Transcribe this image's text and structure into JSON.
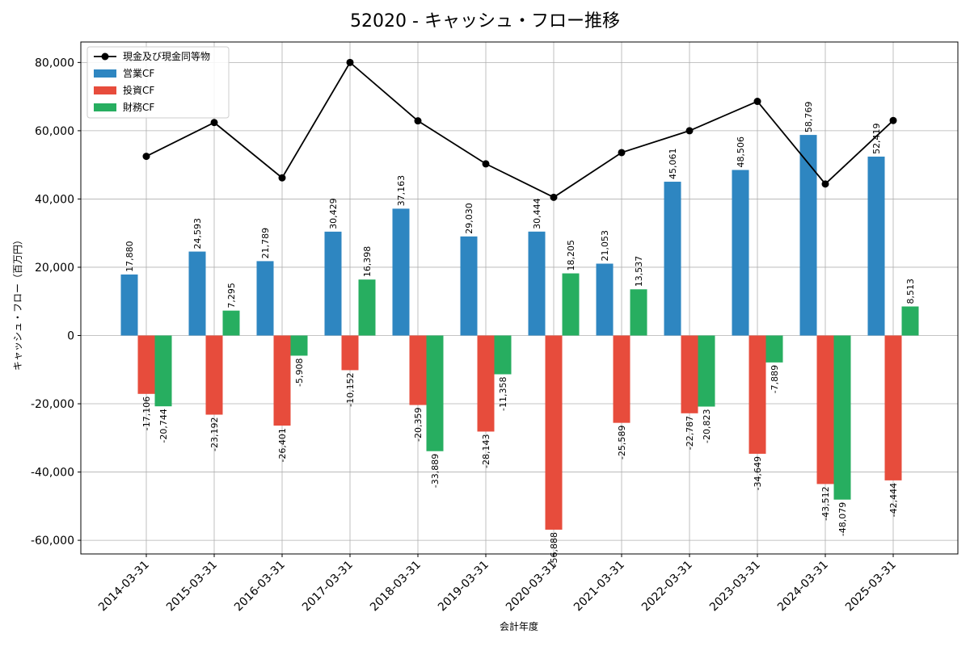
{
  "chart_data": {
    "type": "bar",
    "title": "52020 - キャッシュ・フロー推移",
    "xlabel": "会計年度",
    "ylabel": "キャッシュ・フロー（百万円）",
    "ylim": [
      -64000,
      86000
    ],
    "yticks": [
      -60000,
      -40000,
      -20000,
      0,
      20000,
      40000,
      60000,
      80000
    ],
    "ytick_labels": [
      "-60,000",
      "-40,000",
      "-20,000",
      "0",
      "20,000",
      "40,000",
      "60,000",
      "80,000"
    ],
    "grid": true,
    "legend_position": "top-left",
    "categories": [
      "2014-03-31",
      "2015-03-31",
      "2016-03-31",
      "2017-03-31",
      "2018-03-31",
      "2019-03-31",
      "2020-03-31",
      "2021-03-31",
      "2022-03-31",
      "2023-03-31",
      "2024-03-31",
      "2025-03-31"
    ],
    "series": [
      {
        "name": "営業CF",
        "kind": "bar",
        "color": "#2e86c1",
        "values": [
          17880,
          24593,
          21789,
          30429,
          37163,
          29030,
          30444,
          21053,
          45061,
          48506,
          58769,
          52419
        ],
        "labels": [
          "17,880",
          "24,593",
          "21,789",
          "30,429",
          "37,163",
          "29,030",
          "30,444",
          "21,053",
          "45,061",
          "48,506",
          "58,769",
          "52,419"
        ]
      },
      {
        "name": "投資CF",
        "kind": "bar",
        "color": "#e74c3c",
        "values": [
          -17106,
          -23192,
          -26401,
          -10152,
          -20359,
          -28143,
          -56888,
          -25589,
          -22787,
          -34649,
          -43512,
          -42444
        ],
        "labels": [
          "-17,106",
          "-23,192",
          "-26,401",
          "-10,152",
          "-20,359",
          "-28,143",
          "-56,888",
          "-25,589",
          "-22,787",
          "-34,649",
          "-43,512",
          "-42,444"
        ]
      },
      {
        "name": "財務CF",
        "kind": "bar",
        "color": "#27ae60",
        "values": [
          -20744,
          7295,
          -5908,
          16398,
          -33889,
          -11358,
          18205,
          13537,
          -20823,
          -7889,
          -48079,
          8513
        ],
        "labels": [
          "-20,744",
          "7,295",
          "-5,908",
          "16,398",
          "-33,889",
          "-11,358",
          "18,205",
          "13,537",
          "-20,823",
          "-7,889",
          "-48,079",
          "8,513"
        ]
      },
      {
        "name": "現金及び現金同等物",
        "kind": "line",
        "color": "#000000",
        "values": [
          52500,
          62400,
          46200,
          80000,
          62900,
          50300,
          40500,
          53600,
          60000,
          68600,
          44400,
          63000
        ]
      }
    ]
  }
}
